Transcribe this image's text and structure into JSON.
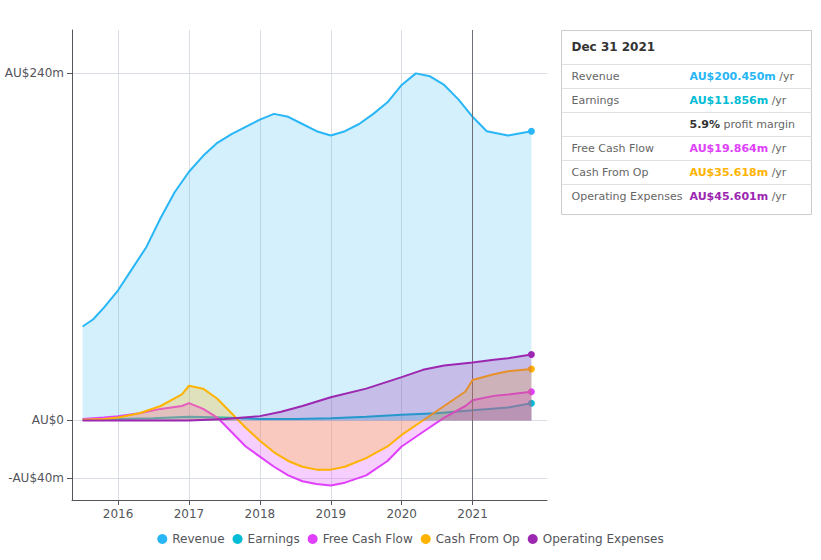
{
  "chart_data": {
    "type": "area",
    "xlim": [
      2015.35,
      2022.05
    ],
    "xticks": [
      2016,
      2017,
      2018,
      2019,
      2020,
      2021
    ],
    "ylim": [
      -55,
      270
    ],
    "yticks": [
      {
        "value": 240,
        "label": "AU$240m"
      },
      {
        "value": 0,
        "label": "AU$0"
      },
      {
        "value": -40,
        "label": "-AU$40m"
      }
    ],
    "grid": true,
    "legend": "bottom",
    "vlines": [
      2021.0
    ],
    "series": [
      {
        "name": "Revenue",
        "color": "#29b6f6",
        "x": [
          2015.5,
          2015.65,
          2015.8,
          2016.0,
          2016.2,
          2016.4,
          2016.6,
          2016.8,
          2017.0,
          2017.2,
          2017.4,
          2017.6,
          2017.8,
          2018.0,
          2018.2,
          2018.4,
          2018.6,
          2018.8,
          2019.0,
          2019.2,
          2019.4,
          2019.6,
          2019.8,
          2020.0,
          2020.2,
          2020.4,
          2020.6,
          2020.8,
          2021.0,
          2021.2,
          2021.5,
          2021.83
        ],
        "values": [
          65,
          70,
          78,
          90,
          105,
          120,
          140,
          158,
          172,
          183,
          192,
          198,
          203,
          208,
          212,
          210,
          205,
          200,
          197,
          200,
          205,
          212,
          220,
          232,
          240,
          238,
          232,
          222,
          210,
          200,
          197,
          200
        ]
      },
      {
        "name": "Earnings",
        "color": "#00bcd4",
        "x": [
          2015.5,
          2016.0,
          2016.5,
          2017.0,
          2017.5,
          2018.0,
          2018.5,
          2019.0,
          2019.5,
          2020.0,
          2020.5,
          2021.0,
          2021.5,
          2021.83
        ],
        "values": [
          0.5,
          1,
          1.5,
          2.5,
          2,
          1,
          1,
          1.5,
          2.5,
          4,
          5,
          7,
          9,
          11.856
        ]
      },
      {
        "name": "Free Cash Flow",
        "color": "#e040fb",
        "x": [
          2015.5,
          2015.8,
          2016.0,
          2016.3,
          2016.6,
          2016.9,
          2017.0,
          2017.2,
          2017.4,
          2017.6,
          2017.8,
          2018.0,
          2018.2,
          2018.4,
          2018.6,
          2018.8,
          2019.0,
          2019.2,
          2019.5,
          2019.8,
          2020.0,
          2020.3,
          2020.6,
          2020.9,
          2021.0,
          2021.3,
          2021.5,
          2021.83
        ],
        "values": [
          1,
          2,
          3,
          5,
          8,
          10,
          12,
          8,
          2,
          -8,
          -18,
          -25,
          -32,
          -38,
          -42,
          -44,
          -45,
          -43,
          -38,
          -28,
          -18,
          -8,
          2,
          10,
          14,
          17,
          18,
          19.864
        ]
      },
      {
        "name": "Cash From Op",
        "color": "#ffb300",
        "x": [
          2015.5,
          2015.8,
          2016.0,
          2016.3,
          2016.6,
          2016.9,
          2017.0,
          2017.2,
          2017.4,
          2017.6,
          2017.8,
          2018.0,
          2018.2,
          2018.4,
          2018.6,
          2018.8,
          2019.0,
          2019.2,
          2019.5,
          2019.8,
          2020.0,
          2020.3,
          2020.6,
          2020.9,
          2021.0,
          2021.3,
          2021.5,
          2021.83
        ],
        "values": [
          0.5,
          1,
          2,
          5,
          10,
          18,
          24,
          22,
          15,
          5,
          -5,
          -14,
          -22,
          -28,
          -32,
          -34,
          -34,
          -32,
          -26,
          -18,
          -10,
          0,
          10,
          20,
          28,
          32,
          34,
          35.618
        ]
      },
      {
        "name": "Operating Expenses",
        "color": "#9c27b0",
        "x": [
          2015.5,
          2016.0,
          2016.5,
          2017.0,
          2017.5,
          2018.0,
          2018.3,
          2018.6,
          2019.0,
          2019.5,
          2020.0,
          2020.3,
          2020.6,
          2021.0,
          2021.3,
          2021.5,
          2021.83
        ],
        "values": [
          0,
          0,
          0,
          0,
          1,
          3,
          6,
          10,
          16,
          22,
          30,
          35,
          38,
          40,
          42,
          43,
          45.601
        ]
      }
    ],
    "info_box": {
      "date": "Dec 31 2021",
      "rows": [
        {
          "label": "Revenue",
          "value": "AU$200.450m",
          "suffix": " /yr",
          "color": "#29b6f6"
        },
        {
          "label": "Earnings",
          "value": "AU$11.856m",
          "suffix": " /yr",
          "color": "#00bcd4"
        },
        {
          "value": "5.9%",
          "suffix": " profit margin",
          "color": "#ffffff"
        },
        {
          "label": "Free Cash Flow",
          "value": "AU$19.864m",
          "suffix": " /yr",
          "color": "#e040fb"
        },
        {
          "label": "Cash From Op",
          "value": "AU$35.618m",
          "suffix": " /yr",
          "color": "#ffb300"
        },
        {
          "label": "Operating Expenses",
          "value": "AU$45.601m",
          "suffix": " /yr",
          "color": "#9c27b0"
        }
      ]
    }
  }
}
